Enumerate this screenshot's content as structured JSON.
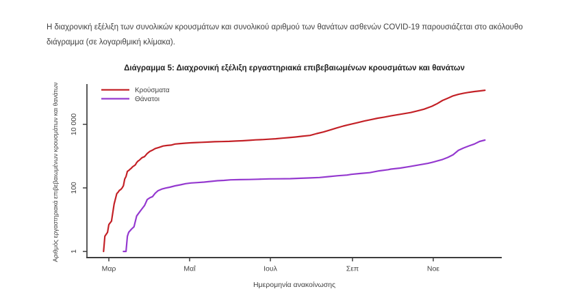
{
  "page": {
    "intro_text": "Η διαχρονική εξέλιξη των συνολικών κρουσμάτων και συνολικού αριθμού των θανάτων ασθενών COVID-19 παρουσιάζεται στο ακόλουθο διάγραμμα (σε λογαριθμική κλίμακα)."
  },
  "chart": {
    "title": "Διάγραμμα 5: Διαχρονική εξέλιξη εργαστηριακά επιβεβαιωμένων κρουσμάτων και θανάτων",
    "x_axis_label": "Ημερομηνία ανακοίνωσης",
    "y_axis_label": "Αριθμός εργαστηριακά επιβεβαιωμένων κρουσμάτων και θανάτων"
  },
  "chart_data": {
    "type": "line",
    "x_scale": "time",
    "y_scale": "log",
    "title": "Διάγραμμα 5: Διαχρονική εξέλιξη εργαστηριακά επιβεβαιωμένων κρουσμάτων και θανάτων",
    "xlabel": "Ημερομηνία ανακοίνωσης",
    "ylabel": "Αριθμός εργαστηριακά επιβεβαιωμένων κρουσμάτων και θανάτων",
    "ylim": [
      1,
      190000
    ],
    "grid": false,
    "legend_position": "top-left",
    "x_ticks": [
      {
        "date": "2020-03-01",
        "label": "Μαρ"
      },
      {
        "date": "2020-05-01",
        "label": "Μαΐ"
      },
      {
        "date": "2020-07-01",
        "label": "Ιουλ"
      },
      {
        "date": "2020-09-01",
        "label": "Σεπ"
      },
      {
        "date": "2020-11-01",
        "label": "Νοε"
      }
    ],
    "y_ticks": [
      {
        "value": 1,
        "label": "1"
      },
      {
        "value": 100,
        "label": "100"
      },
      {
        "value": 10000,
        "label": "10 000"
      }
    ],
    "series": [
      {
        "id": "cases",
        "name": "Κρούσματα",
        "color": "#c32026",
        "points": [
          [
            "2020-02-26",
            1
          ],
          [
            "2020-02-27",
            3
          ],
          [
            "2020-02-29",
            4
          ],
          [
            "2020-03-01",
            7
          ],
          [
            "2020-03-03",
            9
          ],
          [
            "2020-03-05",
            31
          ],
          [
            "2020-03-07",
            66
          ],
          [
            "2020-03-08",
            73
          ],
          [
            "2020-03-09",
            84
          ],
          [
            "2020-03-10",
            89
          ],
          [
            "2020-03-11",
            99
          ],
          [
            "2020-03-12",
            117
          ],
          [
            "2020-03-13",
            190
          ],
          [
            "2020-03-14",
            228
          ],
          [
            "2020-03-15",
            331
          ],
          [
            "2020-03-16",
            352
          ],
          [
            "2020-03-17",
            387
          ],
          [
            "2020-03-18",
            418
          ],
          [
            "2020-03-19",
            464
          ],
          [
            "2020-03-20",
            495
          ],
          [
            "2020-03-21",
            530
          ],
          [
            "2020-03-22",
            624
          ],
          [
            "2020-03-23",
            695
          ],
          [
            "2020-03-24",
            743
          ],
          [
            "2020-03-26",
            892
          ],
          [
            "2020-03-28",
            966
          ],
          [
            "2020-03-30",
            1212
          ],
          [
            "2020-04-01",
            1415
          ],
          [
            "2020-04-03",
            1544
          ],
          [
            "2020-04-05",
            1735
          ],
          [
            "2020-04-08",
            1884
          ],
          [
            "2020-04-11",
            2081
          ],
          [
            "2020-04-14",
            2170
          ],
          [
            "2020-04-17",
            2224
          ],
          [
            "2020-04-20",
            2401
          ],
          [
            "2020-04-24",
            2490
          ],
          [
            "2020-04-28",
            2566
          ],
          [
            "2020-05-02",
            2620
          ],
          [
            "2020-05-06",
            2678
          ],
          [
            "2020-05-10",
            2716
          ],
          [
            "2020-05-15",
            2770
          ],
          [
            "2020-05-20",
            2840
          ],
          [
            "2020-05-25",
            2878
          ],
          [
            "2020-05-31",
            2915
          ],
          [
            "2020-06-05",
            2980
          ],
          [
            "2020-06-10",
            3049
          ],
          [
            "2020-06-15",
            3134
          ],
          [
            "2020-06-20",
            3256
          ],
          [
            "2020-06-25",
            3310
          ],
          [
            "2020-06-30",
            3409
          ],
          [
            "2020-07-05",
            3519
          ],
          [
            "2020-07-10",
            3672
          ],
          [
            "2020-07-15",
            3826
          ],
          [
            "2020-07-20",
            4007
          ],
          [
            "2020-07-25",
            4227
          ],
          [
            "2020-07-31",
            4477
          ],
          [
            "2020-08-05",
            5123
          ],
          [
            "2020-08-10",
            5749
          ],
          [
            "2020-08-15",
            6632
          ],
          [
            "2020-08-20",
            7684
          ],
          [
            "2020-08-25",
            8819
          ],
          [
            "2020-08-31",
            10134
          ],
          [
            "2020-09-05",
            11386
          ],
          [
            "2020-09-10",
            12734
          ],
          [
            "2020-09-15",
            14041
          ],
          [
            "2020-09-20",
            15595
          ],
          [
            "2020-09-25",
            16913
          ],
          [
            "2020-09-30",
            18475
          ],
          [
            "2020-10-05",
            20142
          ],
          [
            "2020-10-10",
            21772
          ],
          [
            "2020-10-15",
            23495
          ],
          [
            "2020-10-20",
            26469
          ],
          [
            "2020-10-25",
            29992
          ],
          [
            "2020-10-31",
            37196
          ],
          [
            "2020-11-04",
            44783
          ],
          [
            "2020-11-08",
            56698
          ],
          [
            "2020-11-12",
            66637
          ],
          [
            "2020-11-16",
            78825
          ],
          [
            "2020-11-20",
            87812
          ],
          [
            "2020-11-24",
            95683
          ],
          [
            "2020-11-28",
            102225
          ],
          [
            "2020-12-02",
            107470
          ],
          [
            "2020-12-06",
            112813
          ],
          [
            "2020-12-10",
            118045
          ]
        ]
      },
      {
        "id": "deaths",
        "name": "Θάνατοι",
        "color": "#9438cf",
        "points": [
          [
            "2020-03-12",
            1
          ],
          [
            "2020-03-14",
            1
          ],
          [
            "2020-03-15",
            3
          ],
          [
            "2020-03-16",
            4
          ],
          [
            "2020-03-18",
            5
          ],
          [
            "2020-03-20",
            6
          ],
          [
            "2020-03-22",
            13
          ],
          [
            "2020-03-24",
            17
          ],
          [
            "2020-03-26",
            22
          ],
          [
            "2020-03-28",
            28
          ],
          [
            "2020-03-30",
            43
          ],
          [
            "2020-04-01",
            49
          ],
          [
            "2020-04-03",
            53
          ],
          [
            "2020-04-05",
            68
          ],
          [
            "2020-04-07",
            81
          ],
          [
            "2020-04-10",
            92
          ],
          [
            "2020-04-13",
            99
          ],
          [
            "2020-04-16",
            105
          ],
          [
            "2020-04-20",
            116
          ],
          [
            "2020-04-24",
            125
          ],
          [
            "2020-04-28",
            136
          ],
          [
            "2020-05-02",
            143
          ],
          [
            "2020-05-07",
            147
          ],
          [
            "2020-05-12",
            152
          ],
          [
            "2020-05-17",
            160
          ],
          [
            "2020-05-22",
            168
          ],
          [
            "2020-05-27",
            172
          ],
          [
            "2020-06-01",
            179
          ],
          [
            "2020-06-08",
            182
          ],
          [
            "2020-06-15",
            184
          ],
          [
            "2020-06-22",
            188
          ],
          [
            "2020-06-30",
            192
          ],
          [
            "2020-07-08",
            193
          ],
          [
            "2020-07-16",
            195
          ],
          [
            "2020-07-24",
            201
          ],
          [
            "2020-07-31",
            206
          ],
          [
            "2020-08-07",
            212
          ],
          [
            "2020-08-14",
            226
          ],
          [
            "2020-08-21",
            242
          ],
          [
            "2020-08-28",
            254
          ],
          [
            "2020-08-31",
            266
          ],
          [
            "2020-09-07",
            284
          ],
          [
            "2020-09-14",
            302
          ],
          [
            "2020-09-21",
            344
          ],
          [
            "2020-09-28",
            376
          ],
          [
            "2020-09-30",
            391
          ],
          [
            "2020-10-07",
            420
          ],
          [
            "2020-10-14",
            469
          ],
          [
            "2020-10-21",
            528
          ],
          [
            "2020-10-28",
            593
          ],
          [
            "2020-10-31",
            635
          ],
          [
            "2020-11-04",
            702
          ],
          [
            "2020-11-08",
            784
          ],
          [
            "2020-11-12",
            909
          ],
          [
            "2020-11-16",
            1106
          ],
          [
            "2020-11-20",
            1527
          ],
          [
            "2020-11-24",
            1815
          ],
          [
            "2020-11-28",
            2102
          ],
          [
            "2020-12-02",
            2406
          ],
          [
            "2020-12-06",
            2902
          ],
          [
            "2020-12-10",
            3194
          ]
        ]
      }
    ]
  }
}
